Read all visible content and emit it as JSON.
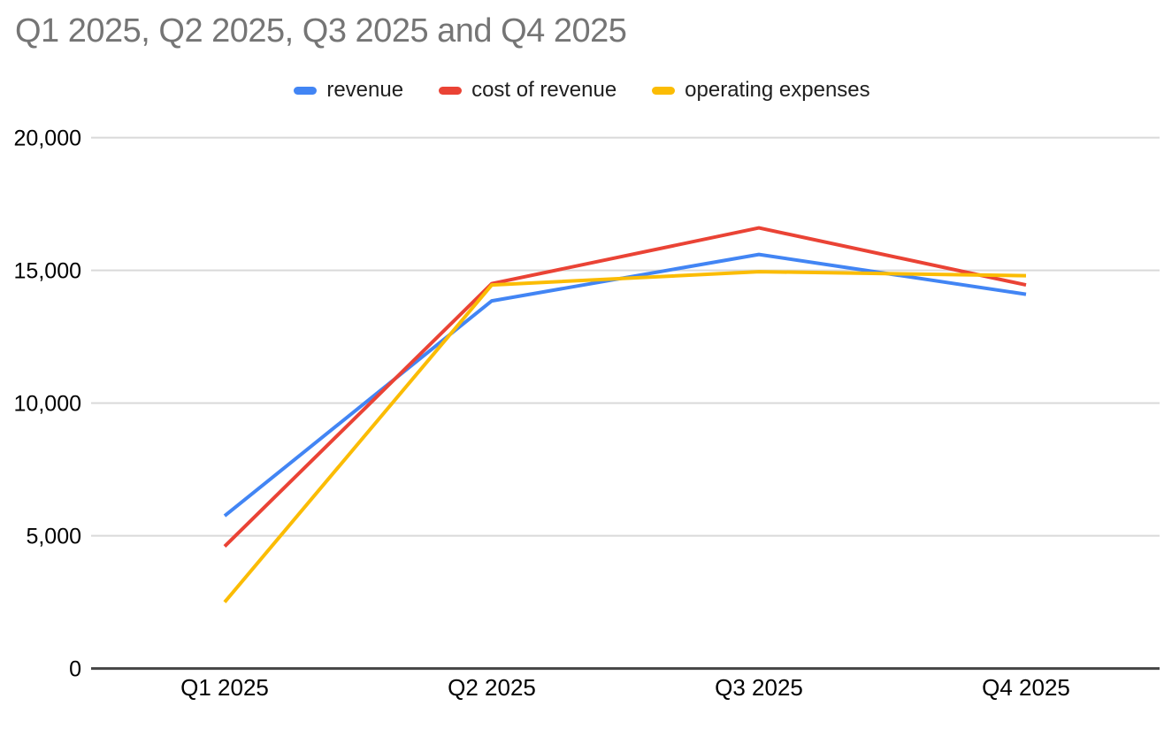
{
  "chart_data": {
    "type": "line",
    "title": "Q1 2025, Q2 2025, Q3 2025 and Q4 2025",
    "categories": [
      "Q1 2025",
      "Q2 2025",
      "Q3 2025",
      "Q4 2025"
    ],
    "series": [
      {
        "name": "revenue",
        "color": "#4285f4",
        "values": [
          5750,
          13850,
          15600,
          14100
        ]
      },
      {
        "name": "cost of revenue",
        "color": "#ea4335",
        "values": [
          4600,
          14500,
          16600,
          14450
        ]
      },
      {
        "name": "operating expenses",
        "color": "#fbbc04",
        "values": [
          2500,
          14450,
          14950,
          14800
        ]
      }
    ],
    "ylim": [
      0,
      20000
    ],
    "yticks": [
      {
        "value": 0,
        "label": "0"
      },
      {
        "value": 5000,
        "label": "5,000"
      },
      {
        "value": 10000,
        "label": "10,000"
      },
      {
        "value": 15000,
        "label": "15,000"
      },
      {
        "value": 20000,
        "label": "20,000"
      }
    ],
    "legend_position": "top",
    "grid": true
  },
  "colors": {
    "title_text": "#757575",
    "axis_text": "#000000",
    "legend_text": "#1f1f1f",
    "gridline": "#d9d9d9",
    "axis_line": "#444444",
    "background": "#ffffff"
  }
}
